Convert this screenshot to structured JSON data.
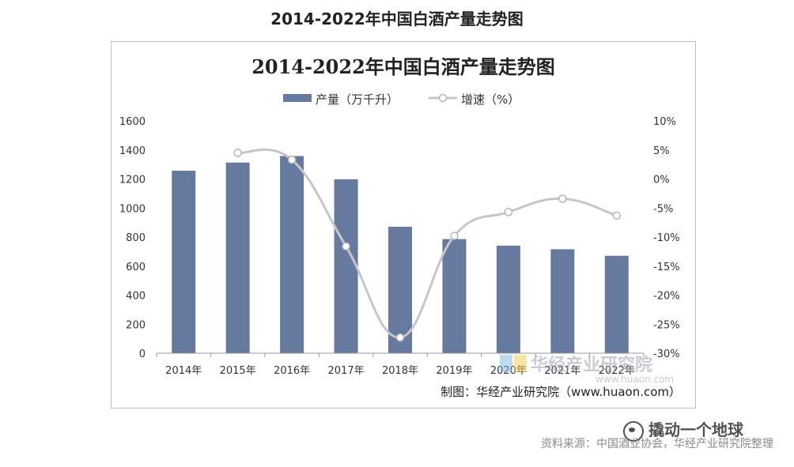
{
  "page": {
    "title": "2014-2022年中国白酒产量走势图",
    "source_note": "资料来源：中国酒业协会，华经产业研究院整理",
    "wechat_label": "撬动一个地球"
  },
  "chart_data": {
    "type": "bar+line",
    "title": "2014-2022年中国白酒产量走势图",
    "categories": [
      "2014年",
      "2015年",
      "2016年",
      "2017年",
      "2018年",
      "2019年",
      "2020年",
      "2021年",
      "2022年"
    ],
    "series": [
      {
        "name": "产量（万千升）",
        "type": "bar",
        "axis": "left",
        "color": "#667aa0",
        "values": [
          1257,
          1313,
          1358,
          1198,
          871,
          786,
          741,
          716,
          671
        ]
      },
      {
        "name": "增速（%）",
        "type": "line",
        "axis": "right",
        "color": "#c6c6c6",
        "values": [
          null,
          4.5,
          3.3,
          -11.6,
          -27.3,
          -9.8,
          -5.7,
          -3.4,
          -6.3
        ]
      }
    ],
    "y_left": {
      "min": 0,
      "max": 1600,
      "ticks": [
        "0",
        "200",
        "400",
        "600",
        "800",
        "1000",
        "1200",
        "1400",
        "1600"
      ]
    },
    "y_right": {
      "min": -30,
      "max": 10,
      "ticks": [
        "-30%",
        "-25%",
        "-20%",
        "-15%",
        "-10%",
        "-5%",
        "0%",
        "5%",
        "10%"
      ]
    },
    "legend_position": "top-center",
    "credit": "制图：华经产业研究院（www.huaon.com）",
    "watermark": {
      "name": "华经产业研究院",
      "url": "www.huaon.com"
    }
  }
}
